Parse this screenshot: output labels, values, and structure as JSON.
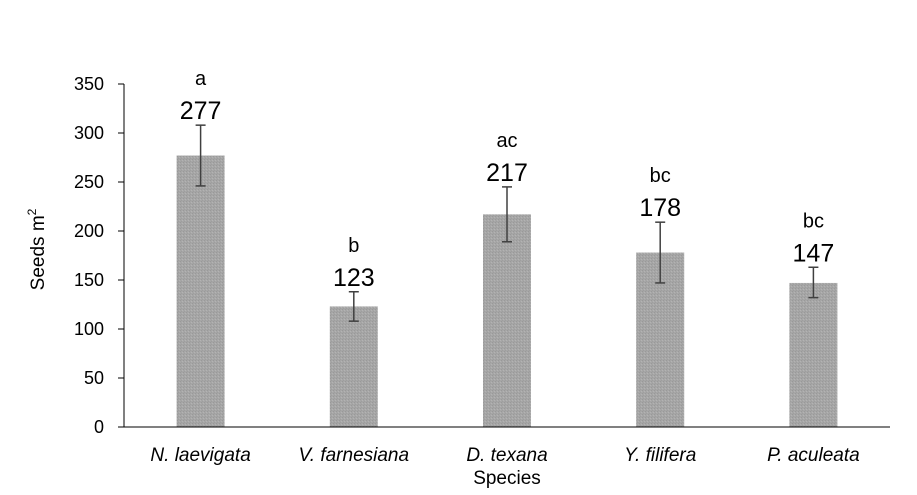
{
  "chart_data": {
    "type": "bar",
    "title": "",
    "xlabel": "Species",
    "ylabel": "Seeds m",
    "ylabel_superscript": "2",
    "categories": [
      "N. laevigata",
      "V. farnesiana",
      "D. texana",
      "Y. filifera",
      "P. aculeata"
    ],
    "values": [
      277,
      123,
      217,
      178,
      147
    ],
    "value_labels": [
      "277",
      "123",
      "217",
      "178",
      "147"
    ],
    "error_low": [
      246,
      108,
      189,
      147,
      132
    ],
    "error_high": [
      308,
      138,
      245,
      209,
      163
    ],
    "group_letters": [
      "a",
      "b",
      "ac",
      "bc",
      "bc"
    ],
    "ylim": [
      0,
      350
    ],
    "yticks": [
      0,
      50,
      100,
      150,
      200,
      250,
      300,
      350
    ],
    "grid": false,
    "bar_color": "#a6a6a6",
    "axis_color": "#000000",
    "error_color": "#404040"
  }
}
